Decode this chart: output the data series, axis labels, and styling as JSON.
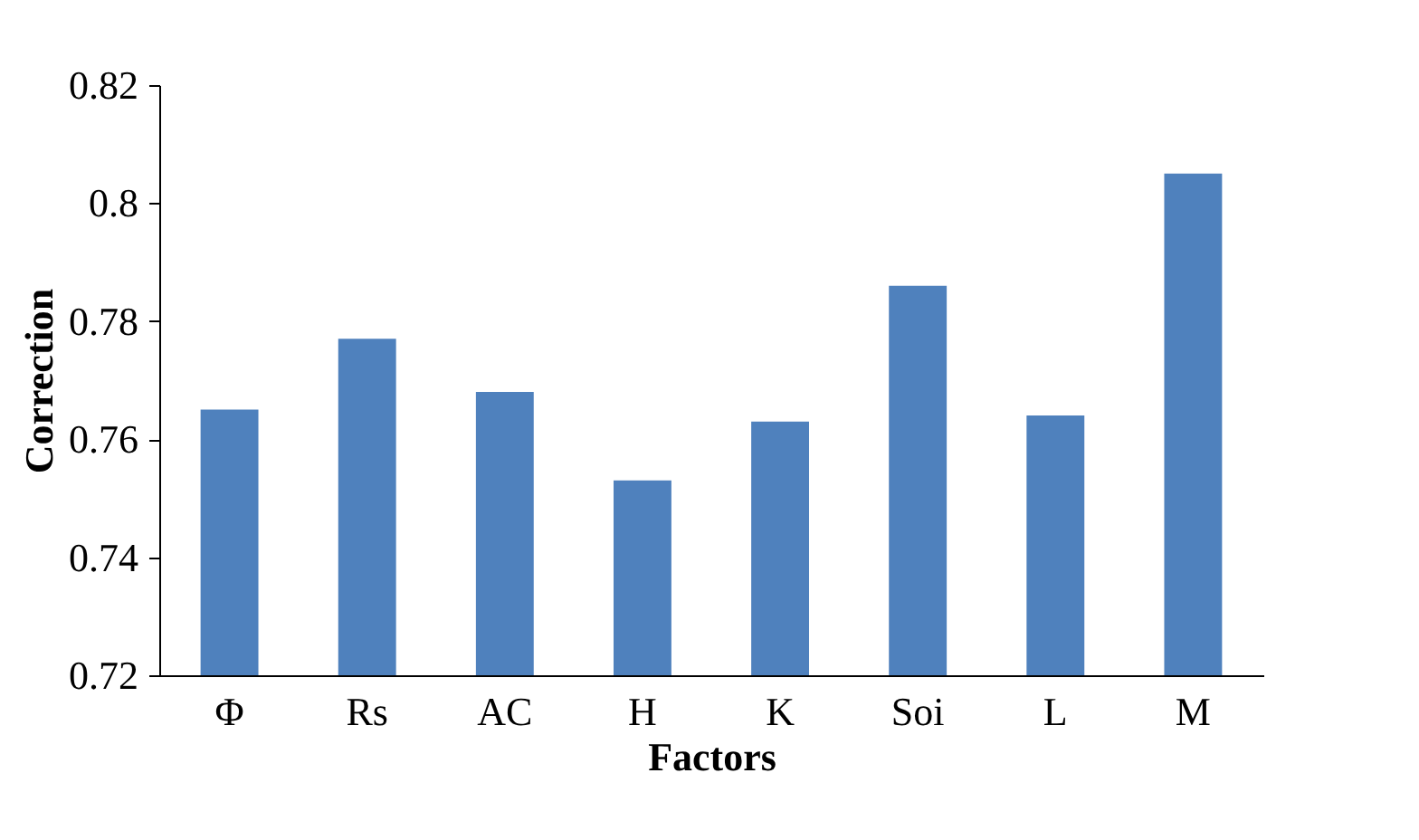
{
  "chart_data": {
    "type": "bar",
    "xlabel": "Factors",
    "ylabel": "Correction",
    "categories": [
      "Φ",
      "Rs",
      "AC",
      "H",
      "K",
      "Soi",
      "L",
      "M"
    ],
    "values": [
      0.765,
      0.777,
      0.768,
      0.753,
      0.763,
      0.786,
      0.764,
      0.805
    ],
    "color": "#4f81bd",
    "ylim": [
      0.72,
      0.82
    ],
    "yticks": [
      0.72,
      0.74,
      0.76,
      0.78,
      0.8,
      0.82
    ],
    "grid": false
  }
}
